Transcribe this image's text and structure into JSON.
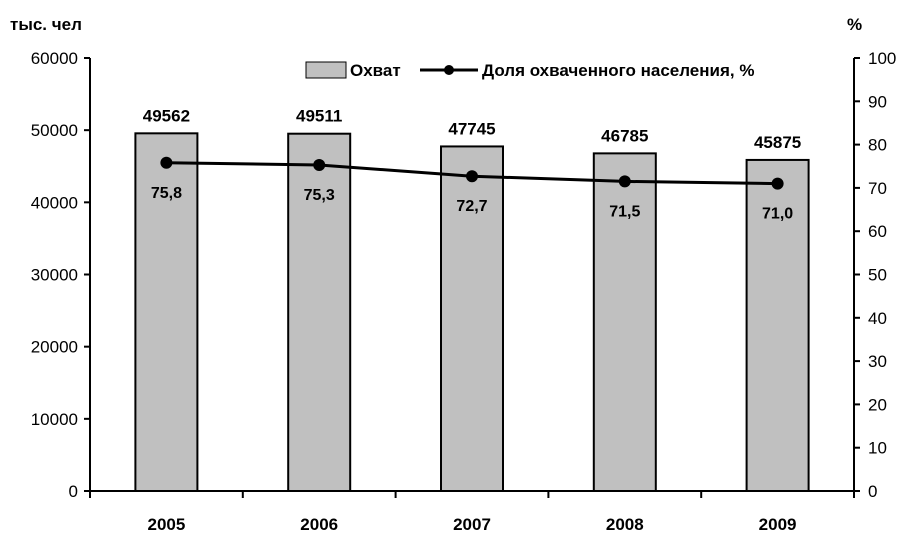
{
  "chart_data": {
    "type": "bar",
    "categories": [
      "2005",
      "2006",
      "2007",
      "2008",
      "2009"
    ],
    "series": [
      {
        "name": "Охват",
        "type": "bar",
        "axis": "left",
        "values": [
          49562,
          49511,
          47745,
          46785,
          45875
        ],
        "labels": [
          "49562",
          "49511",
          "47745",
          "46785",
          "45875"
        ],
        "color": "#c0c0c0"
      },
      {
        "name": "Доля охваченного населения, %",
        "type": "line",
        "axis": "right",
        "values": [
          75.8,
          75.3,
          72.7,
          71.5,
          71.0
        ],
        "labels": [
          "75,8",
          "75,3",
          "72,7",
          "71,5",
          "71,0"
        ],
        "color": "#000000"
      }
    ],
    "ylabel_left": "тыс. чел",
    "ylabel_right": "%",
    "ylim_left": [
      0,
      60000
    ],
    "ylim_right": [
      0,
      100
    ],
    "yticks_left": [
      "0",
      "10000",
      "20000",
      "30000",
      "40000",
      "50000",
      "60000"
    ],
    "yticks_right": [
      "0",
      "10",
      "20",
      "30",
      "40",
      "50",
      "60",
      "70",
      "80",
      "90",
      "100"
    ],
    "grid": false,
    "legend_position": "top-right"
  }
}
